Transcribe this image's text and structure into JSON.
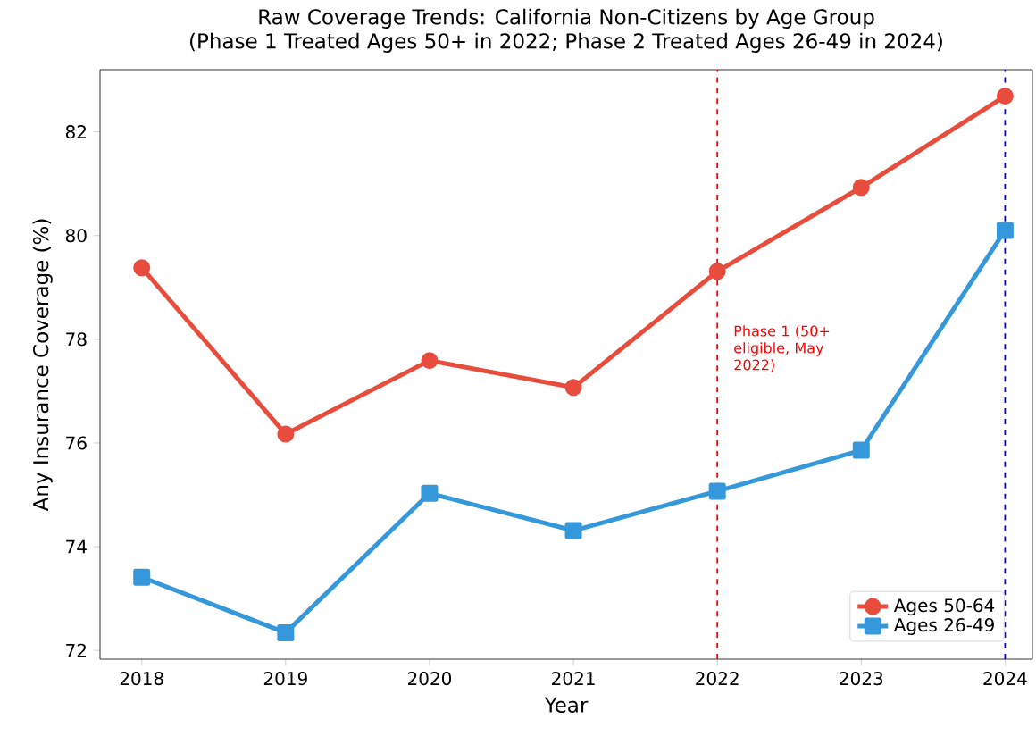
{
  "chart_data": {
    "type": "line",
    "title": "Raw Coverage Trends: California Non-Citizens by Age Group",
    "subtitle": "(Phase 1 Treated Ages 50+ in 2022; Phase 2 Treated Ages 26-49 in 2024)",
    "xlabel": "Year",
    "ylabel": "Any Insurance Coverage (%)",
    "x": [
      2018,
      2019,
      2020,
      2021,
      2022,
      2023,
      2024
    ],
    "series": [
      {
        "name": "Ages 50-64",
        "color": "#e74c3c",
        "marker": "circle",
        "values": [
          79.38,
          76.17,
          77.59,
          77.07,
          79.31,
          80.93,
          82.69
        ]
      },
      {
        "name": "Ages 26-49",
        "color": "#3498db",
        "marker": "square",
        "values": [
          73.41,
          72.34,
          75.03,
          74.31,
          75.07,
          75.86,
          80.1
        ]
      }
    ],
    "xlim": [
      2017.71,
      2024.19
    ],
    "ylim": [
      71.83,
      83.2
    ],
    "xticks": [
      2018,
      2019,
      2020,
      2021,
      2022,
      2023,
      2024
    ],
    "yticks": [
      72,
      74,
      76,
      78,
      80,
      82
    ],
    "ref_lines": [
      {
        "axis": "x",
        "value": 2022,
        "label": "Phase 1 (50+ eligible, May 2022)",
        "color": "#ff0000",
        "line_style": "dashed"
      },
      {
        "axis": "x",
        "value": 2024,
        "color": "#0000ff",
        "line_style": "dashed"
      }
    ],
    "legend": "bottom right",
    "grid": false,
    "line_style": "solid"
  }
}
